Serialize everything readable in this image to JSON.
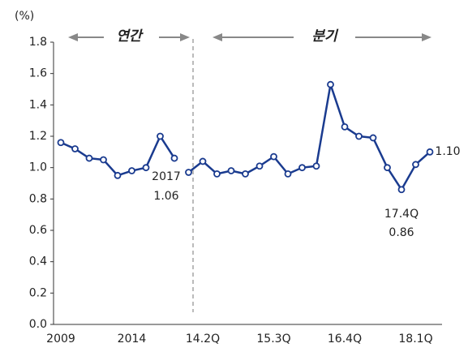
{
  "chart_data": {
    "type": "line",
    "unit_label": "(%)",
    "annotations": [
      "연간",
      "분기",
      "2017",
      "17.4Q"
    ],
    "categories": [
      "2009",
      null,
      null,
      null,
      null,
      "2014",
      null,
      null,
      null,
      null,
      "14.2Q",
      null,
      null,
      null,
      null,
      "15.3Q",
      null,
      null,
      null,
      null,
      "16.4Q",
      null,
      null,
      null,
      null,
      "18.1Q",
      null
    ],
    "series": [
      {
        "color": "#1a3b8f",
        "values": [
          1.16,
          1.12,
          1.06,
          1.05,
          0.95,
          0.98,
          1.0,
          1.2,
          1.06,
          null,
          null,
          null,
          null,
          null,
          null,
          null,
          null,
          null,
          null,
          null,
          null,
          null,
          null,
          null,
          null,
          null,
          null
        ],
        "value_labels": [
          null,
          null,
          null,
          null,
          null,
          null,
          null,
          null,
          "1.06",
          null,
          null,
          null,
          null,
          null,
          null,
          null,
          null,
          null,
          null,
          null,
          null,
          null,
          null,
          null,
          null,
          null,
          null
        ]
      },
      {
        "color": "#1a3b8f",
        "values": [
          null,
          null,
          null,
          null,
          null,
          null,
          null,
          null,
          null,
          0.97,
          1.04,
          0.96,
          0.98,
          0.96,
          1.01,
          1.07,
          0.96,
          1.0,
          1.01,
          1.53,
          1.26,
          1.2,
          1.19,
          1.0,
          0.86,
          1.02,
          1.1
        ],
        "value_labels": [
          null,
          null,
          null,
          null,
          null,
          null,
          null,
          null,
          null,
          null,
          null,
          null,
          null,
          null,
          null,
          null,
          null,
          null,
          null,
          null,
          null,
          null,
          null,
          null,
          "0.86",
          null,
          "1.10"
        ]
      }
    ],
    "ylim": [
      0,
      1.8
    ],
    "yticks": [
      {
        "value": 0,
        "label": "0.0"
      },
      0.2,
      0.4,
      0.6,
      0.8,
      {
        "value": 1,
        "label": "1.0"
      },
      1.2,
      1.4,
      1.6,
      1.8
    ]
  }
}
